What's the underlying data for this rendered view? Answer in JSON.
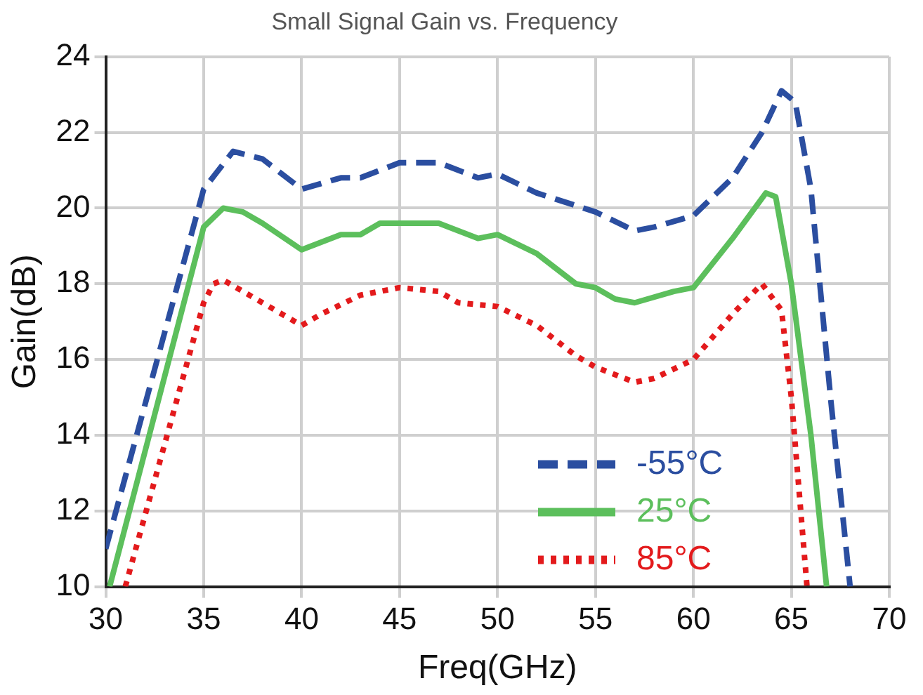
{
  "chart_data": {
    "type": "line",
    "title": "Small Signal Gain vs. Frequency",
    "xlabel": "Freq(GHz)",
    "ylabel": "Gain(dB)",
    "xlim": [
      30,
      70
    ],
    "xticks": [
      30,
      35,
      40,
      45,
      50,
      55,
      60,
      65,
      70
    ],
    "ylim": [
      10,
      24
    ],
    "yticks": [
      10,
      12,
      14,
      16,
      18,
      20,
      22,
      24
    ],
    "grid": true,
    "legend": "bottom right",
    "marker": "none",
    "series": [
      {
        "name": "-55°C",
        "color": "#2b4ea0",
        "line_style": "dashed",
        "x": [
          30,
          35,
          36.5,
          38,
          40,
          42,
          43,
          45,
          47,
          48,
          49,
          50,
          52,
          55,
          57,
          58,
          60,
          62,
          63.5,
          64.5,
          65.2,
          66,
          67,
          68
        ],
        "values": [
          11,
          20.5,
          21.5,
          21.3,
          20.5,
          20.8,
          20.8,
          21.2,
          21.2,
          21.0,
          20.8,
          20.9,
          20.4,
          19.9,
          19.4,
          19.5,
          19.8,
          20.8,
          22.0,
          23.1,
          22.8,
          20.5,
          15,
          10
        ]
      },
      {
        "name": "25°C",
        "color": "#5cbf5c",
        "line_style": "solid",
        "x": [
          30.2,
          35,
          36,
          37,
          38,
          40,
          42,
          43,
          44,
          46,
          47,
          48,
          49,
          50,
          52,
          54,
          55,
          56,
          57,
          59,
          60,
          62,
          63.7,
          64.2,
          65,
          66,
          66.8
        ],
        "values": [
          10,
          19.5,
          20.0,
          19.9,
          19.6,
          18.9,
          19.3,
          19.3,
          19.6,
          19.6,
          19.6,
          19.4,
          19.2,
          19.3,
          18.8,
          18.0,
          17.9,
          17.6,
          17.5,
          17.8,
          17.9,
          19.2,
          20.4,
          20.3,
          18.0,
          14,
          10
        ]
      },
      {
        "name": "85°C",
        "color": "#e31a1c",
        "line_style": "dotted",
        "x": [
          31,
          35,
          35.5,
          36,
          38,
          40,
          41,
          43,
          45,
          47,
          48,
          50,
          52,
          54,
          55,
          57,
          58,
          60,
          62,
          63.5,
          64.5,
          65,
          65.8
        ],
        "values": [
          10,
          17.5,
          18.0,
          18.1,
          17.5,
          16.9,
          17.2,
          17.7,
          17.9,
          17.8,
          17.5,
          17.4,
          16.9,
          16.1,
          15.8,
          15.4,
          15.5,
          16.0,
          17.2,
          18.0,
          17.3,
          15,
          10
        ]
      }
    ]
  }
}
